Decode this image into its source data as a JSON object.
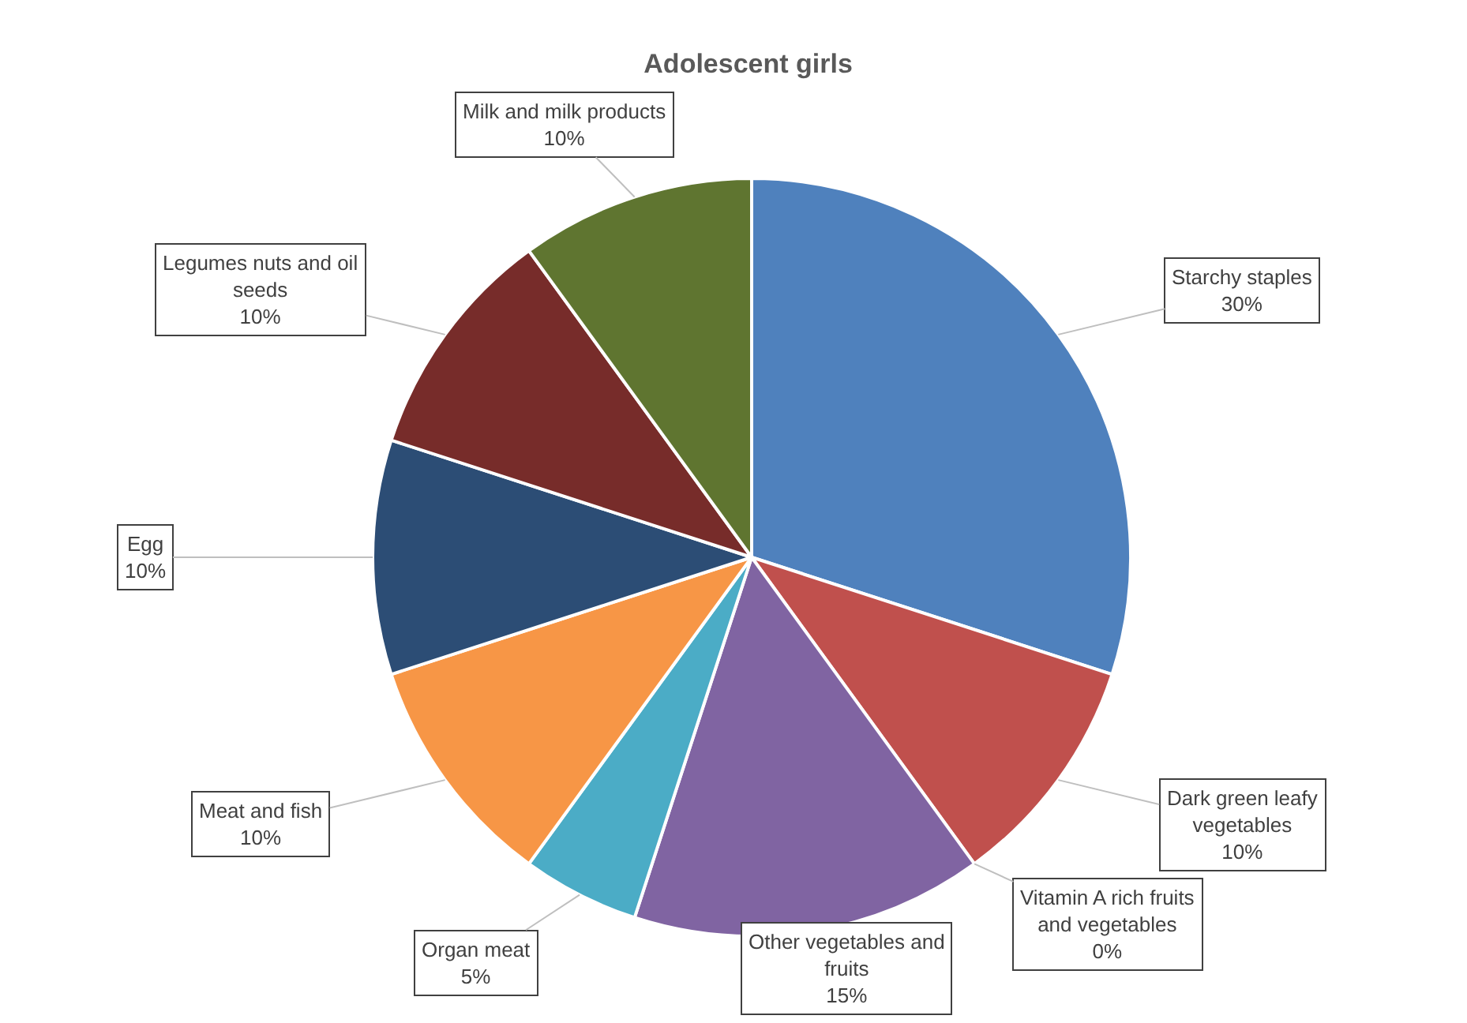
{
  "chart_data": {
    "type": "pie",
    "title": "Adolescent girls",
    "categories": [
      "Starchy staples",
      "Dark green leafy vegetables",
      "Vitamin A rich fruits and vegetables",
      "Other vegetables and fruits",
      "Organ meat",
      "Meat and fish",
      "Egg",
      "Legumes nuts and oil seeds",
      "Milk and milk products"
    ],
    "values": [
      30,
      10,
      0,
      15,
      5,
      10,
      10,
      10,
      10
    ],
    "value_labels": [
      "30%",
      "10%",
      "0%",
      "15%",
      "5%",
      "10%",
      "10%",
      "10%",
      "10%"
    ],
    "colors": [
      "#4f81bd",
      "#c0504d",
      "#9bbb59",
      "#8064a2",
      "#4bacc6",
      "#f79646",
      "#2c4d75",
      "#772c2a",
      "#5f7530"
    ],
    "legend": false
  }
}
